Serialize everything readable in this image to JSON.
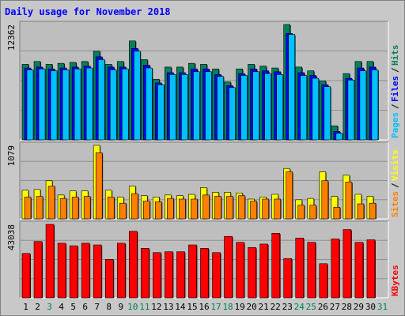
{
  "title": "Daily usage for November 2018",
  "colors": {
    "background": "#c8c8c8",
    "panel": "#bebebe",
    "title": "#0000ff",
    "hits": "#00805c",
    "files": "#0000ff",
    "pages": "#00c0ff",
    "visits": "#ffff00",
    "sites": "#ff8000",
    "kbytes": "#ff0000",
    "weekend_day": "#00805c",
    "weekday": "#000000"
  },
  "chart_data": [
    {
      "type": "bar",
      "panel": "top",
      "max_label": "12362",
      "ylim": [
        0,
        12362
      ],
      "legend": [
        {
          "label": "Pages",
          "color": "#00c0ff"
        },
        {
          "label": "Files",
          "color": "#0000ff"
        },
        {
          "label": "Hits",
          "color": "#00805c"
        }
      ],
      "categories": [
        "1",
        "2",
        "3",
        "4",
        "5",
        "6",
        "7",
        "8",
        "9",
        "10",
        "11",
        "12",
        "13",
        "14",
        "15",
        "16",
        "17",
        "18",
        "19",
        "20",
        "21",
        "22",
        "23",
        "24",
        "25",
        "26",
        "27",
        "28",
        "29",
        "30",
        "31"
      ],
      "series": [
        {
          "name": "Hits",
          "values": [
            8100,
            8400,
            8100,
            8200,
            8300,
            8400,
            9500,
            8100,
            8400,
            10600,
            8600,
            6500,
            7800,
            7800,
            8200,
            8100,
            7600,
            6200,
            7600,
            8100,
            7900,
            7700,
            12362,
            7800,
            7400,
            6300,
            1500,
            7100,
            8400,
            8400,
            0
          ]
        },
        {
          "name": "Files",
          "values": [
            7700,
            7800,
            7600,
            7700,
            7800,
            7900,
            8900,
            7800,
            7800,
            9800,
            8000,
            6100,
            7200,
            7200,
            7600,
            7600,
            7000,
            5800,
            7100,
            7600,
            7400,
            7300,
            11400,
            7200,
            6900,
            5900,
            900,
            6600,
            7700,
            7800,
            0
          ]
        },
        {
          "name": "Pages",
          "values": [
            7500,
            7600,
            7400,
            7500,
            7600,
            7700,
            8600,
            7500,
            7600,
            9500,
            7700,
            5900,
            7000,
            7000,
            7300,
            7300,
            6800,
            5600,
            6900,
            7300,
            7100,
            7000,
            11300,
            6900,
            6600,
            5700,
            700,
            6400,
            7400,
            7500,
            0
          ]
        }
      ]
    },
    {
      "type": "bar",
      "panel": "middle",
      "max_label": "1079",
      "ylim": [
        0,
        1079
      ],
      "legend": [
        {
          "label": "Sites",
          "color": "#ff8000"
        },
        {
          "label": "Visits",
          "color": "#ffff00"
        }
      ],
      "categories": [
        "1",
        "2",
        "3",
        "4",
        "5",
        "6",
        "7",
        "8",
        "9",
        "10",
        "11",
        "12",
        "13",
        "14",
        "15",
        "16",
        "17",
        "18",
        "19",
        "20",
        "21",
        "22",
        "23",
        "24",
        "25",
        "26",
        "27",
        "28",
        "29",
        "30",
        "31"
      ],
      "series": [
        {
          "name": "Visits",
          "values": [
            420,
            430,
            560,
            350,
            410,
            410,
            1079,
            420,
            320,
            480,
            340,
            320,
            350,
            340,
            360,
            460,
            390,
            390,
            380,
            290,
            320,
            360,
            740,
            280,
            300,
            690,
            330,
            640,
            360,
            330,
            0
          ]
        },
        {
          "name": "Sites",
          "values": [
            320,
            330,
            480,
            300,
            320,
            330,
            970,
            320,
            230,
            370,
            260,
            250,
            300,
            290,
            290,
            350,
            330,
            330,
            340,
            260,
            290,
            290,
            690,
            200,
            200,
            560,
            170,
            540,
            220,
            230,
            0
          ]
        }
      ]
    },
    {
      "type": "bar",
      "panel": "bottom",
      "max_label": "43038",
      "ylim": [
        0,
        43038
      ],
      "legend": [
        {
          "label": "KBytes",
          "color": "#ff0000"
        }
      ],
      "categories": [
        "1",
        "2",
        "3",
        "4",
        "5",
        "6",
        "7",
        "8",
        "9",
        "10",
        "11",
        "12",
        "13",
        "14",
        "15",
        "16",
        "17",
        "18",
        "19",
        "20",
        "21",
        "22",
        "23",
        "24",
        "25",
        "26",
        "27",
        "28",
        "29",
        "30",
        "31"
      ],
      "series": [
        {
          "name": "KBytes",
          "values": [
            26000,
            33000,
            43038,
            32000,
            30500,
            32000,
            31000,
            22500,
            32000,
            39000,
            29000,
            26500,
            27000,
            27000,
            31000,
            29000,
            26500,
            36000,
            32500,
            29500,
            31500,
            37800,
            23000,
            35000,
            32500,
            20000,
            34500,
            40000,
            32500,
            34000,
            0
          ]
        }
      ]
    }
  ],
  "weekend_days": [
    "3",
    "10",
    "11",
    "17",
    "18",
    "24",
    "25",
    "31"
  ]
}
